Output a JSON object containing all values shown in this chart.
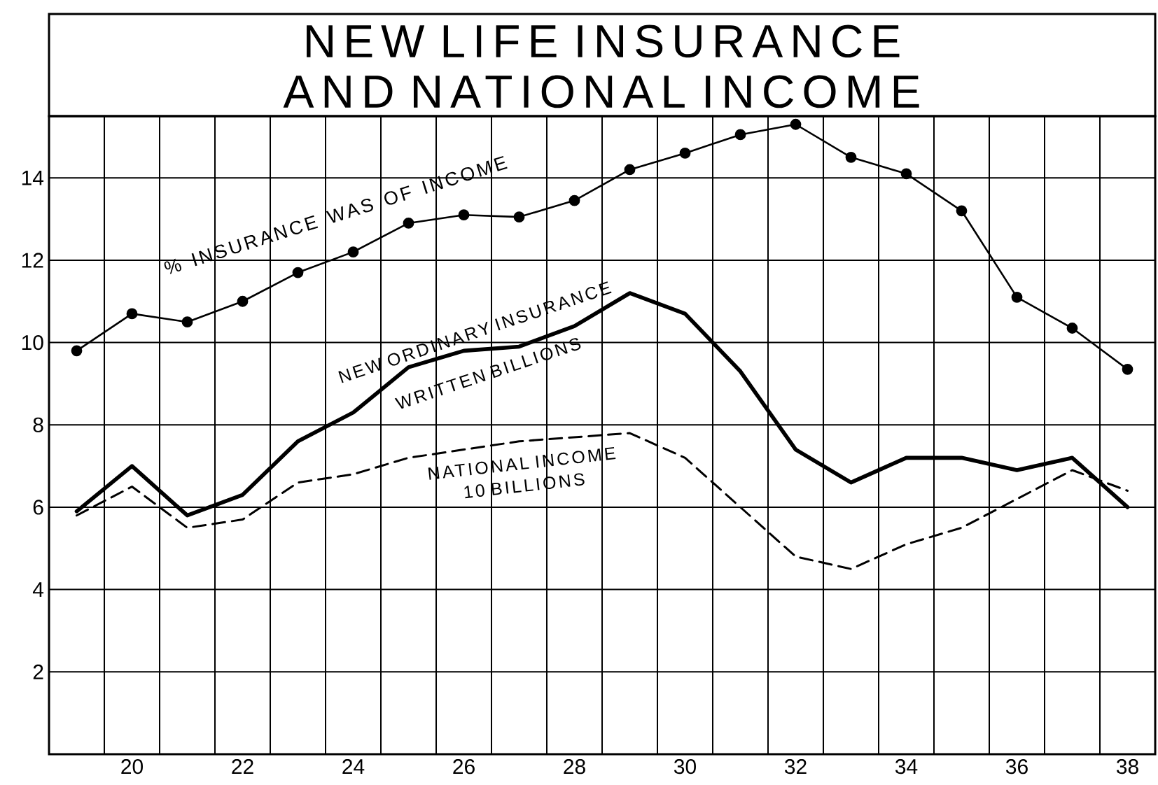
{
  "chart_data": {
    "type": "line",
    "title": "NEW LIFE INSURANCE AND NATIONAL INCOME",
    "x": [
      19,
      20,
      21,
      22,
      23,
      24,
      25,
      26,
      27,
      28,
      29,
      30,
      31,
      32,
      33,
      34,
      35,
      36,
      37,
      38
    ],
    "series": [
      {
        "name": "% INSURANCE WAS OF INCOME",
        "color": "#000000",
        "marker": "circle",
        "line_style": "solid",
        "values": [
          9.8,
          10.7,
          10.5,
          11.0,
          11.7,
          12.2,
          12.9,
          13.1,
          13.05,
          13.45,
          14.2,
          14.6,
          15.05,
          15.3,
          14.5,
          14.1,
          13.2,
          11.1,
          10.35,
          9.35
        ]
      },
      {
        "name": "NEW ORDINARY INSURANCE WRITTEN BILLIONS",
        "color": "#000000",
        "marker": "none",
        "line_style": "solid",
        "values": [
          5.9,
          7.0,
          5.8,
          6.3,
          7.6,
          8.3,
          9.4,
          9.8,
          9.9,
          10.4,
          11.2,
          10.7,
          9.3,
          7.4,
          6.6,
          7.2,
          7.2,
          6.9,
          7.2,
          6.0
        ]
      },
      {
        "name": "NATIONAL INCOME 10 BILLIONS",
        "color": "#000000",
        "marker": "none",
        "line_style": "dashed",
        "values": [
          5.8,
          6.5,
          5.5,
          5.7,
          6.6,
          6.8,
          7.2,
          7.4,
          7.6,
          7.7,
          7.8,
          7.2,
          6.0,
          4.8,
          4.5,
          5.1,
          5.5,
          6.2,
          6.9,
          6.4
        ]
      }
    ],
    "xlim": [
      18.5,
      38.5
    ],
    "xticks": [
      {
        "value": 19.5,
        "label": null
      },
      20,
      {
        "value": 20.5,
        "label": null
      },
      {
        "value": 21.5,
        "label": null
      },
      22,
      {
        "value": 22.5,
        "label": null
      },
      {
        "value": 23.5,
        "label": null
      },
      24,
      {
        "value": 24.5,
        "label": null
      },
      {
        "value": 25.5,
        "label": null
      },
      26,
      {
        "value": 26.5,
        "label": null
      },
      {
        "value": 27.5,
        "label": null
      },
      28,
      {
        "value": 28.5,
        "label": null
      },
      {
        "value": 29.5,
        "label": null
      },
      30,
      {
        "value": 30.5,
        "label": null
      },
      {
        "value": 31.5,
        "label": null
      },
      32,
      {
        "value": 32.5,
        "label": null
      },
      {
        "value": 33.5,
        "label": null
      },
      34,
      {
        "value": 34.5,
        "label": null
      },
      {
        "value": 35.5,
        "label": null
      },
      36,
      {
        "value": 36.5,
        "label": null
      },
      {
        "value": 37.5,
        "label": null
      },
      38
    ],
    "ylim": [
      0,
      15.5
    ],
    "yticks": [
      2,
      4,
      6,
      8,
      10,
      12,
      14
    ],
    "grid": true
  }
}
